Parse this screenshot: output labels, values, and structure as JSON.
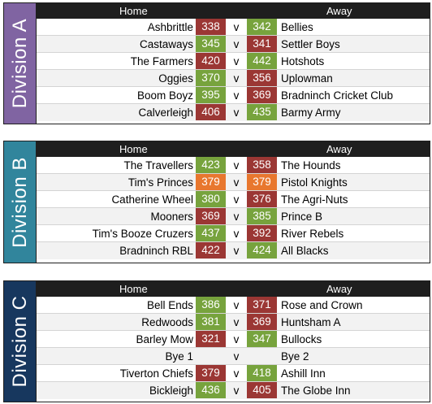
{
  "colors": {
    "win": "#77a33d",
    "loss": "#9b3734",
    "draw": "#e8772e"
  },
  "divisions": [
    {
      "label": "Division A",
      "color": "#8064a2",
      "header_home": "Home",
      "header_away": "Away",
      "matches": [
        {
          "home": "Ashbrittle",
          "home_score": "338",
          "vs": "v",
          "away_score": "342",
          "away": "Bellies",
          "home_result": "loss",
          "away_result": "win"
        },
        {
          "home": "Castaways",
          "home_score": "345",
          "vs": "v",
          "away_score": "341",
          "away": "Settler Boys",
          "home_result": "win",
          "away_result": "loss"
        },
        {
          "home": "The Farmers",
          "home_score": "420",
          "vs": "v",
          "away_score": "442",
          "away": "Hotshots",
          "home_result": "loss",
          "away_result": "win"
        },
        {
          "home": "Oggies",
          "home_score": "370",
          "vs": "v",
          "away_score": "356",
          "away": "Uplowman",
          "home_result": "win",
          "away_result": "loss"
        },
        {
          "home": "Boom Boyz",
          "home_score": "395",
          "vs": "v",
          "away_score": "369",
          "away": "Bradninch Cricket Club",
          "home_result": "win",
          "away_result": "loss"
        },
        {
          "home": "Calverleigh",
          "home_score": "406",
          "vs": "v",
          "away_score": "435",
          "away": "Barmy Army",
          "home_result": "loss",
          "away_result": "win"
        }
      ]
    },
    {
      "label": "Division B",
      "color": "#31859c",
      "header_home": "Home",
      "header_away": "Away",
      "matches": [
        {
          "home": "The Travellers",
          "home_score": "423",
          "vs": "v",
          "away_score": "358",
          "away": "The Hounds",
          "home_result": "win",
          "away_result": "loss"
        },
        {
          "home": "Tim's Princes",
          "home_score": "379",
          "vs": "v",
          "away_score": "379",
          "away": "Pistol Knights",
          "home_result": "draw",
          "away_result": "draw"
        },
        {
          "home": "Catherine Wheel",
          "home_score": "380",
          "vs": "v",
          "away_score": "376",
          "away": "The Agri-Nuts",
          "home_result": "win",
          "away_result": "loss"
        },
        {
          "home": "Mooners",
          "home_score": "369",
          "vs": "v",
          "away_score": "385",
          "away": "Prince B",
          "home_result": "loss",
          "away_result": "win"
        },
        {
          "home": "Tim's Booze Cruzers",
          "home_score": "437",
          "vs": "v",
          "away_score": "392",
          "away": "River Rebels",
          "home_result": "win",
          "away_result": "loss"
        },
        {
          "home": "Bradninch RBL",
          "home_score": "422",
          "vs": "v",
          "away_score": "424",
          "away": "All Blacks",
          "home_result": "loss",
          "away_result": "win"
        }
      ]
    },
    {
      "label": "Division C",
      "color": "#17375e",
      "header_home": "Home",
      "header_away": "Away",
      "matches": [
        {
          "home": "Bell Ends",
          "home_score": "386",
          "vs": "v",
          "away_score": "371",
          "away": "Rose and Crown",
          "home_result": "win",
          "away_result": "loss"
        },
        {
          "home": "Redwoods",
          "home_score": "381",
          "vs": "v",
          "away_score": "369",
          "away": "Huntsham A",
          "home_result": "win",
          "away_result": "loss"
        },
        {
          "home": "Barley Mow",
          "home_score": "321",
          "vs": "v",
          "away_score": "347",
          "away": "Bullocks",
          "home_result": "loss",
          "away_result": "win"
        },
        {
          "home": "Bye 1",
          "home_score": "",
          "vs": "v",
          "away_score": "",
          "away": "Bye 2",
          "home_result": "none",
          "away_result": "none"
        },
        {
          "home": "Tiverton Chiefs",
          "home_score": "379",
          "vs": "v",
          "away_score": "418",
          "away": "Ashill Inn",
          "home_result": "loss",
          "away_result": "win"
        },
        {
          "home": "Bickleigh",
          "home_score": "436",
          "vs": "v",
          "away_score": "405",
          "away": "The Globe Inn",
          "home_result": "win",
          "away_result": "loss"
        }
      ]
    }
  ]
}
